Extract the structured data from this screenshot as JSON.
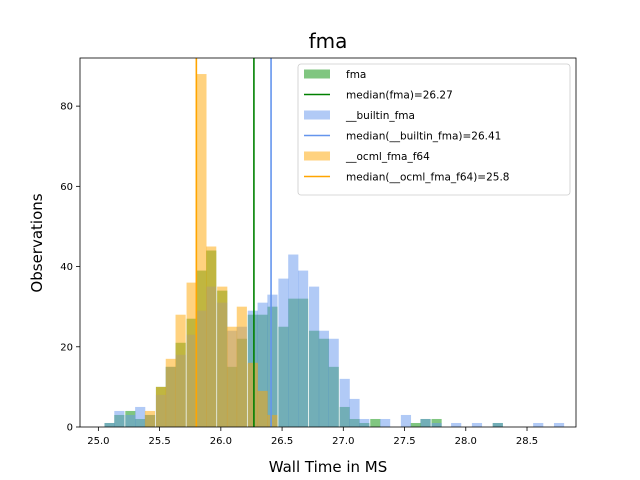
{
  "chart_data": {
    "type": "bar",
    "title": "fma",
    "xlabel": "Wall Time in MS",
    "ylabel": "Observations",
    "xlim": [
      24.85,
      28.9
    ],
    "ylim": [
      0,
      92
    ],
    "x_ticks": [
      "25.0",
      "25.5",
      "26.0",
      "26.5",
      "27.0",
      "27.5",
      "28.0",
      "28.5"
    ],
    "y_ticks": [
      "0",
      "20",
      "40",
      "60",
      "80"
    ],
    "grid": false,
    "legend_position": "top-right",
    "colors": {
      "fma": "#2ca02c",
      "fma_median": "#008000",
      "builtin": "#6495ed",
      "builtin_median": "#6495ed",
      "ocml": "#ffa500",
      "ocml_median": "#ffa500"
    },
    "series": [
      {
        "name": "fma",
        "kind": "histogram",
        "bin_width": 0.083,
        "bins": [
          [
            25.05,
            1
          ],
          [
            25.13,
            3
          ],
          [
            25.22,
            4
          ],
          [
            25.3,
            2
          ],
          [
            25.38,
            3
          ],
          [
            25.47,
            10
          ],
          [
            25.55,
            15
          ],
          [
            25.63,
            21
          ],
          [
            25.72,
            27
          ],
          [
            25.8,
            39
          ],
          [
            25.88,
            44
          ],
          [
            25.97,
            34
          ],
          [
            26.05,
            15
          ],
          [
            26.13,
            22
          ],
          [
            26.22,
            28
          ],
          [
            26.3,
            28
          ],
          [
            26.38,
            30
          ],
          [
            26.47,
            25
          ],
          [
            26.55,
            32
          ],
          [
            26.63,
            32
          ],
          [
            26.72,
            24
          ],
          [
            26.8,
            22
          ],
          [
            26.88,
            15
          ],
          [
            26.97,
            5
          ],
          [
            27.05,
            2
          ],
          [
            27.13,
            1
          ],
          [
            27.22,
            2
          ],
          [
            27.55,
            1
          ],
          [
            27.63,
            2
          ],
          [
            27.72,
            2
          ],
          [
            28.22,
            1
          ]
        ]
      },
      {
        "name": "median(fma)=26.27",
        "kind": "vline",
        "x": 26.27
      },
      {
        "name": "__builtin_fma",
        "kind": "histogram",
        "bin_width": 0.083,
        "bins": [
          [
            25.05,
            1
          ],
          [
            25.13,
            4
          ],
          [
            25.22,
            3
          ],
          [
            25.3,
            5
          ],
          [
            25.38,
            3
          ],
          [
            25.47,
            8
          ],
          [
            25.55,
            15
          ],
          [
            25.63,
            18
          ],
          [
            25.72,
            23
          ],
          [
            25.8,
            29
          ],
          [
            25.88,
            35
          ],
          [
            25.97,
            31
          ],
          [
            26.05,
            24
          ],
          [
            26.13,
            25
          ],
          [
            26.22,
            29
          ],
          [
            26.3,
            31
          ],
          [
            26.38,
            33
          ],
          [
            26.47,
            37
          ],
          [
            26.55,
            43
          ],
          [
            26.63,
            39
          ],
          [
            26.72,
            35
          ],
          [
            26.8,
            24
          ],
          [
            26.88,
            22
          ],
          [
            26.97,
            12
          ],
          [
            27.05,
            7
          ],
          [
            27.13,
            2
          ],
          [
            27.3,
            2
          ],
          [
            27.47,
            3
          ],
          [
            27.63,
            2
          ],
          [
            27.72,
            1
          ],
          [
            27.88,
            1
          ],
          [
            28.05,
            1
          ],
          [
            28.22,
            1
          ],
          [
            28.55,
            1
          ],
          [
            28.72,
            1
          ]
        ]
      },
      {
        "name": "median(__builtin_fma)=26.41",
        "kind": "vline",
        "x": 26.41
      },
      {
        "name": "__ocml_fma_f64",
        "kind": "histogram",
        "bin_width": 0.083,
        "bins": [
          [
            25.38,
            4
          ],
          [
            25.47,
            10
          ],
          [
            25.55,
            17
          ],
          [
            25.63,
            28
          ],
          [
            25.72,
            36
          ],
          [
            25.8,
            88
          ],
          [
            25.88,
            45
          ],
          [
            25.97,
            35
          ],
          [
            26.05,
            25
          ],
          [
            26.13,
            30
          ],
          [
            26.22,
            16
          ],
          [
            26.3,
            9
          ],
          [
            26.38,
            3
          ]
        ]
      },
      {
        "name": "median(__ocml_fma_f64)=25.8",
        "kind": "vline",
        "x": 25.8
      }
    ]
  }
}
